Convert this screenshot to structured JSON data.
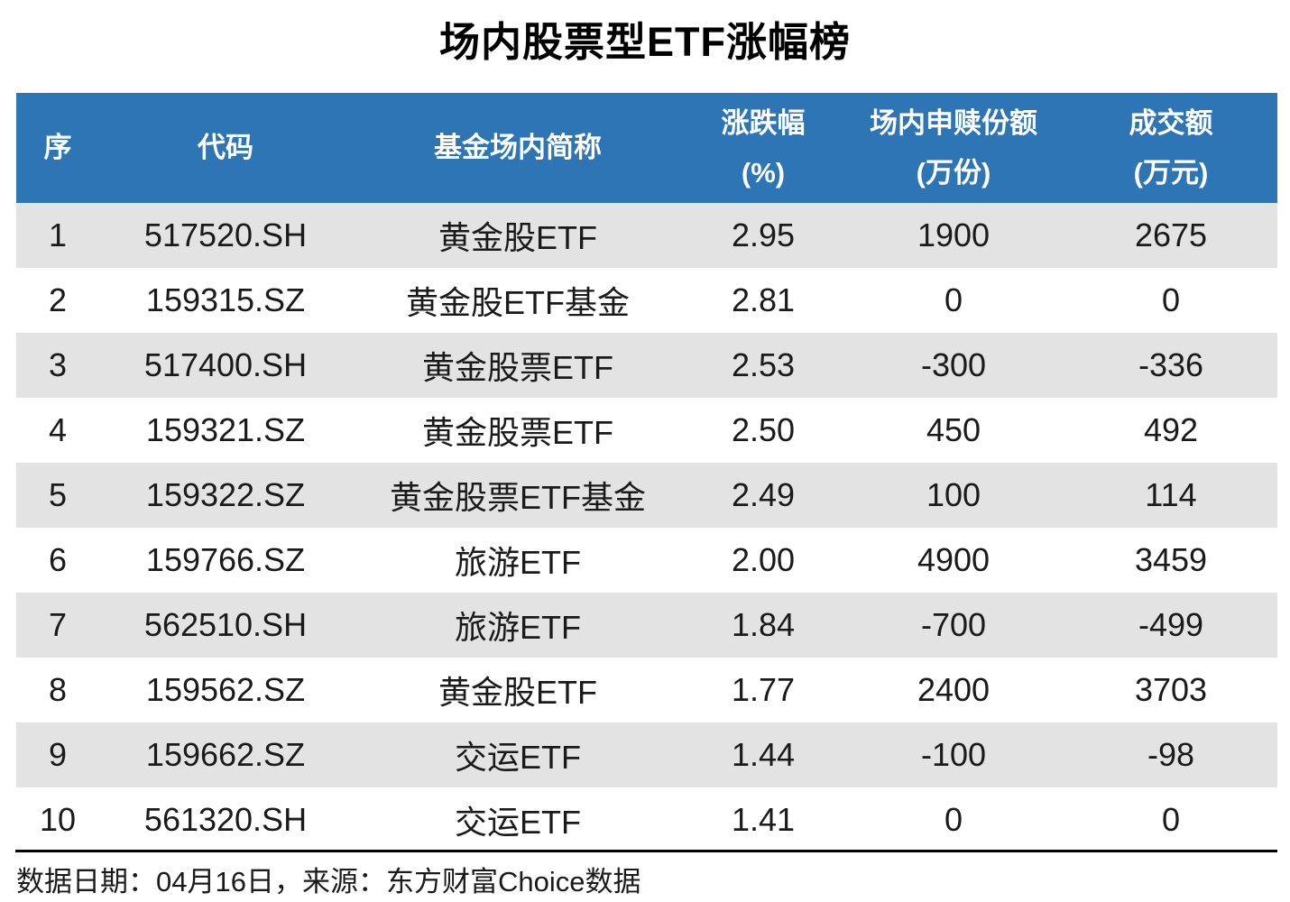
{
  "title": "场内股票型ETF涨幅榜",
  "colors": {
    "header_bg": "#2E75B6",
    "header_text": "#FFFFFF",
    "alt_row_bg": "#E3E3E3",
    "body_text": "#1A1A1A",
    "divider": "#000000"
  },
  "chart_data": {
    "type": "table",
    "title": "场内股票型ETF涨幅榜",
    "columns": [
      {
        "label": "序",
        "unit": ""
      },
      {
        "label": "代码",
        "unit": ""
      },
      {
        "label": "基金场内简称",
        "unit": ""
      },
      {
        "label": "涨跌幅",
        "unit": "(%)"
      },
      {
        "label": "场内申赎份额",
        "unit": "(万份)"
      },
      {
        "label": "成交额",
        "unit": "(万元)"
      }
    ],
    "rows": [
      [
        "1",
        "517520.SH",
        "黄金股ETF",
        "2.95",
        "1900",
        "2675"
      ],
      [
        "2",
        "159315.SZ",
        "黄金股ETF基金",
        "2.81",
        "0",
        "0"
      ],
      [
        "3",
        "517400.SH",
        "黄金股票ETF",
        "2.53",
        "-300",
        "-336"
      ],
      [
        "4",
        "159321.SZ",
        "黄金股票ETF",
        "2.50",
        "450",
        "492"
      ],
      [
        "5",
        "159322.SZ",
        "黄金股票ETF基金",
        "2.49",
        "100",
        "114"
      ],
      [
        "6",
        "159766.SZ",
        "旅游ETF",
        "2.00",
        "4900",
        "3459"
      ],
      [
        "7",
        "562510.SH",
        "旅游ETF",
        "1.84",
        "-700",
        "-499"
      ],
      [
        "8",
        "159562.SZ",
        "黄金股ETF",
        "1.77",
        "2400",
        "3703"
      ],
      [
        "9",
        "159662.SZ",
        "交运ETF",
        "1.44",
        "-100",
        "-98"
      ],
      [
        "10",
        "561320.SH",
        "交运ETF",
        "1.41",
        "0",
        "0"
      ]
    ]
  },
  "footer": {
    "text": "数据日期：04月16日，来源：东方财富Choice数据"
  }
}
